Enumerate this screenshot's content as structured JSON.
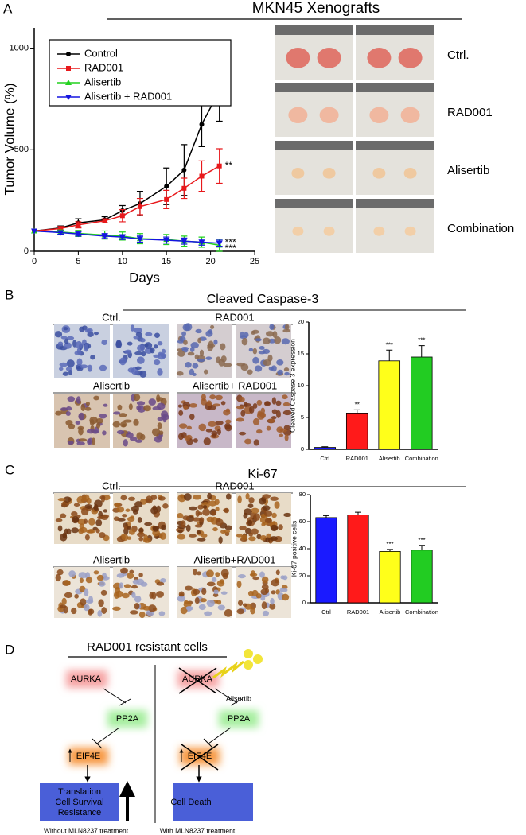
{
  "panel_labels": [
    "A",
    "B",
    "C",
    "D"
  ],
  "chart_data": [
    {
      "type": "line",
      "title": "MKN45 Xenografts",
      "x_label": "Days",
      "y_label": "Tumor Volume (%)",
      "x": [
        0,
        3,
        5,
        8,
        10,
        12,
        15,
        17,
        19,
        21
      ],
      "xlim": [
        0,
        25
      ],
      "xticks": [
        0,
        5,
        10,
        15,
        20,
        25
      ],
      "ylim": [
        0,
        1100
      ],
      "yticks": [
        0,
        500,
        1000
      ],
      "legend": "upper-left",
      "series": [
        {
          "name": "Control",
          "color": "#000000",
          "marker": "circle",
          "values": [
            100,
            115,
            140,
            155,
            200,
            235,
            320,
            400,
            625,
            790
          ],
          "errors": [
            0,
            10,
            20,
            15,
            25,
            60,
            90,
            125,
            110,
            150
          ]
        },
        {
          "name": "RAD001",
          "color": "#e8191c",
          "marker": "square",
          "values": [
            100,
            112,
            130,
            150,
            175,
            220,
            255,
            310,
            370,
            420
          ],
          "errors": [
            0,
            10,
            15,
            10,
            30,
            40,
            45,
            50,
            75,
            85
          ],
          "significance": "**"
        },
        {
          "name": "Alisertib",
          "color": "#22d11e",
          "marker": "triangle-up",
          "values": [
            100,
            95,
            88,
            80,
            75,
            62,
            58,
            50,
            45,
            30
          ],
          "errors": [
            0,
            10,
            15,
            20,
            20,
            25,
            25,
            25,
            25,
            30
          ],
          "significance": "***"
        },
        {
          "name": "Alisertib + RAD001",
          "color": "#1515e0",
          "marker": "triangle-down",
          "values": [
            100,
            92,
            85,
            75,
            70,
            60,
            55,
            50,
            45,
            40
          ],
          "errors": [
            0,
            8,
            10,
            12,
            12,
            15,
            15,
            15,
            15,
            15
          ],
          "significance": "***"
        }
      ]
    },
    {
      "type": "bar",
      "title": "Cleaved Caspase-3",
      "y_label": "Cleaved Caspase 3 expression",
      "categories": [
        "Ctrl",
        "RAD001",
        "Alisertib",
        "Combination"
      ],
      "values": [
        0.3,
        5.7,
        13.9,
        14.5
      ],
      "errors": [
        0.1,
        0.5,
        1.7,
        1.8
      ],
      "significance": [
        null,
        "**",
        "***",
        "***"
      ],
      "colors": [
        "#1a1aff",
        "#ff1a1a",
        "#ffff1a",
        "#22cc22"
      ],
      "ylim": [
        0,
        20
      ],
      "yticks": [
        0,
        5,
        10,
        15,
        20
      ]
    },
    {
      "type": "bar",
      "title": "Ki-67",
      "y_label": "Ki-67 positive cells",
      "categories": [
        "Ctrl",
        "RAD001",
        "Alisertib",
        "Combination"
      ],
      "values": [
        63,
        65,
        38,
        39
      ],
      "errors": [
        1.5,
        2,
        1.5,
        3.5
      ],
      "significance": [
        null,
        null,
        "***",
        "***"
      ],
      "colors": [
        "#1a1aff",
        "#ff1a1a",
        "#ffff1a",
        "#22cc22"
      ],
      "ylim": [
        0,
        80
      ],
      "yticks": [
        0,
        20,
        40,
        60,
        80
      ]
    }
  ],
  "photos": {
    "rows": [
      "Ctrl.",
      "RAD001",
      "Alisertib",
      "Combination"
    ]
  },
  "micrographs_b": {
    "labels": [
      "Ctrl.",
      "RAD001",
      "Alisertib",
      "Alisertib+ RAD001"
    ]
  },
  "micrographs_c": {
    "labels": [
      "Ctrl.",
      "RAD001",
      "Alisertib",
      "Alisertib+RAD001"
    ]
  },
  "diagram": {
    "title": "RAD001 resistant cells",
    "left": {
      "nodes": [
        "AURKA",
        "PP2A",
        "EIF4E"
      ],
      "outcome": [
        "Translation",
        "Cell Survival",
        "Resistance"
      ],
      "caption": "Without MLN8237 treatment"
    },
    "right": {
      "nodes": [
        "AURKA",
        "PP2A",
        "EIF4E"
      ],
      "drug": "Alisertib",
      "outcome": [
        "Cell Death"
      ],
      "caption": "With MLN8237 treatment"
    }
  }
}
